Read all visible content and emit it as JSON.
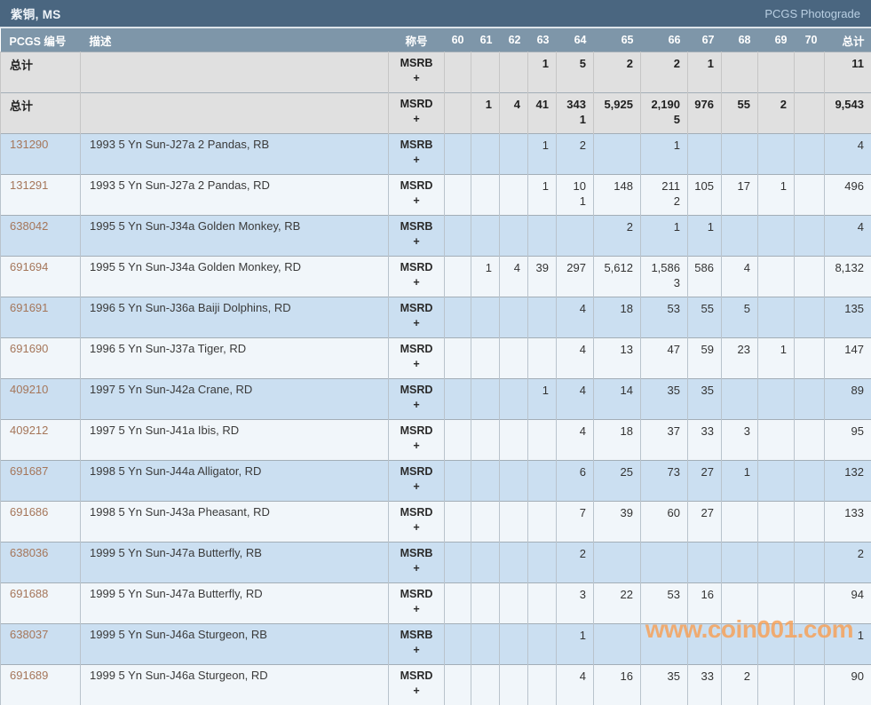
{
  "title_bar": {
    "title": "紫铜, MS",
    "photograde_label": "PCGS Photograde"
  },
  "watermark": {
    "text": "www.coin001.com"
  },
  "colors": {
    "title_bar": "#4a6680",
    "header_bar": "#7e96a9",
    "row_blue": "#cbdff1",
    "row_white": "#f1f6fa",
    "row_summary": "#e0e0e0",
    "link": "#a5765a",
    "watermark": "#f8a055",
    "header_text": "#ffffff",
    "title_text": "#eef3f8",
    "photograde_link": "#b9cfe2",
    "border_h": "#a3aeb7",
    "border_v": "#b9c3cc",
    "text": "#333333"
  },
  "table": {
    "headers": [
      "PCGS 编号",
      "描述",
      "称号",
      "60",
      "61",
      "62",
      "63",
      "64",
      "65",
      "66",
      "67",
      "68",
      "69",
      "70",
      "总计"
    ],
    "grade_keys": [
      "60",
      "61",
      "62",
      "63",
      "64",
      "65",
      "66",
      "67",
      "68",
      "69",
      "70"
    ],
    "rows": [
      {
        "id": "总计",
        "is_link": false,
        "kind": "summary",
        "description": "",
        "designation": [
          "MSRB",
          "+"
        ],
        "grades": {
          "63": [
            "1",
            ""
          ],
          "64": [
            "5",
            ""
          ],
          "65": [
            "2",
            ""
          ],
          "66": [
            "2",
            ""
          ],
          "67": [
            "1",
            ""
          ]
        },
        "total": [
          "11",
          ""
        ]
      },
      {
        "id": "总计",
        "is_link": false,
        "kind": "summary",
        "description": "",
        "designation": [
          "MSRD",
          "+"
        ],
        "grades": {
          "61": [
            "1",
            ""
          ],
          "62": [
            "4",
            ""
          ],
          "63": [
            "41",
            ""
          ],
          "64": [
            "343",
            "1"
          ],
          "65": [
            "5,925",
            ""
          ],
          "66": [
            "2,190",
            "5"
          ],
          "67": [
            "976",
            ""
          ],
          "68": [
            "55",
            ""
          ],
          "69": [
            "2",
            ""
          ]
        },
        "total": [
          "9,543",
          ""
        ]
      },
      {
        "id": "131290",
        "is_link": true,
        "kind": "data",
        "description": "1993 5 Yn Sun-J27a 2 Pandas, RB",
        "designation": [
          "MSRB",
          "+"
        ],
        "grades": {
          "63": [
            "1",
            ""
          ],
          "64": [
            "2",
            ""
          ],
          "66": [
            "1",
            ""
          ]
        },
        "total": [
          "4",
          ""
        ]
      },
      {
        "id": "131291",
        "is_link": true,
        "kind": "data",
        "description": "1993 5 Yn Sun-J27a 2 Pandas, RD",
        "designation": [
          "MSRD",
          "+"
        ],
        "grades": {
          "63": [
            "1",
            ""
          ],
          "64": [
            "10",
            "1"
          ],
          "65": [
            "148",
            ""
          ],
          "66": [
            "211",
            "2"
          ],
          "67": [
            "105",
            ""
          ],
          "68": [
            "17",
            ""
          ],
          "69": [
            "1",
            ""
          ]
        },
        "total": [
          "496",
          ""
        ]
      },
      {
        "id": "638042",
        "is_link": true,
        "kind": "data",
        "description": "1995 5 Yn Sun-J34a Golden Monkey, RB",
        "designation": [
          "MSRB",
          "+"
        ],
        "grades": {
          "65": [
            "2",
            ""
          ],
          "66": [
            "1",
            ""
          ],
          "67": [
            "1",
            ""
          ]
        },
        "total": [
          "4",
          ""
        ]
      },
      {
        "id": "691694",
        "is_link": true,
        "kind": "data",
        "description": "1995 5 Yn Sun-J34a Golden Monkey, RD",
        "designation": [
          "MSRD",
          "+"
        ],
        "grades": {
          "61": [
            "1",
            ""
          ],
          "62": [
            "4",
            ""
          ],
          "63": [
            "39",
            ""
          ],
          "64": [
            "297",
            ""
          ],
          "65": [
            "5,612",
            ""
          ],
          "66": [
            "1,586",
            "3"
          ],
          "67": [
            "586",
            ""
          ],
          "68": [
            "4",
            ""
          ]
        },
        "total": [
          "8,132",
          ""
        ]
      },
      {
        "id": "691691",
        "is_link": true,
        "kind": "data",
        "description": "1996 5 Yn Sun-J36a Baiji Dolphins, RD",
        "designation": [
          "MSRD",
          "+"
        ],
        "grades": {
          "64": [
            "4",
            ""
          ],
          "65": [
            "18",
            ""
          ],
          "66": [
            "53",
            ""
          ],
          "67": [
            "55",
            ""
          ],
          "68": [
            "5",
            ""
          ]
        },
        "total": [
          "135",
          ""
        ]
      },
      {
        "id": "691690",
        "is_link": true,
        "kind": "data",
        "description": "1996 5 Yn Sun-J37a Tiger, RD",
        "designation": [
          "MSRD",
          "+"
        ],
        "grades": {
          "64": [
            "4",
            ""
          ],
          "65": [
            "13",
            ""
          ],
          "66": [
            "47",
            ""
          ],
          "67": [
            "59",
            ""
          ],
          "68": [
            "23",
            ""
          ],
          "69": [
            "1",
            ""
          ]
        },
        "total": [
          "147",
          ""
        ]
      },
      {
        "id": "409210",
        "is_link": true,
        "kind": "data",
        "description": "1997 5 Yn Sun-J42a Crane, RD",
        "designation": [
          "MSRD",
          "+"
        ],
        "grades": {
          "63": [
            "1",
            ""
          ],
          "64": [
            "4",
            ""
          ],
          "65": [
            "14",
            ""
          ],
          "66": [
            "35",
            ""
          ],
          "67": [
            "35",
            ""
          ]
        },
        "total": [
          "89",
          ""
        ]
      },
      {
        "id": "409212",
        "is_link": true,
        "kind": "data",
        "description": "1997 5 Yn Sun-J41a Ibis, RD",
        "designation": [
          "MSRD",
          "+"
        ],
        "grades": {
          "64": [
            "4",
            ""
          ],
          "65": [
            "18",
            ""
          ],
          "66": [
            "37",
            ""
          ],
          "67": [
            "33",
            ""
          ],
          "68": [
            "3",
            ""
          ]
        },
        "total": [
          "95",
          ""
        ]
      },
      {
        "id": "691687",
        "is_link": true,
        "kind": "data",
        "description": "1998 5 Yn Sun-J44a Alligator, RD",
        "designation": [
          "MSRD",
          "+"
        ],
        "grades": {
          "64": [
            "6",
            ""
          ],
          "65": [
            "25",
            ""
          ],
          "66": [
            "73",
            ""
          ],
          "67": [
            "27",
            ""
          ],
          "68": [
            "1",
            ""
          ]
        },
        "total": [
          "132",
          ""
        ]
      },
      {
        "id": "691686",
        "is_link": true,
        "kind": "data",
        "description": "1998 5 Yn Sun-J43a Pheasant, RD",
        "designation": [
          "MSRD",
          "+"
        ],
        "grades": {
          "64": [
            "7",
            ""
          ],
          "65": [
            "39",
            ""
          ],
          "66": [
            "60",
            ""
          ],
          "67": [
            "27",
            ""
          ]
        },
        "total": [
          "133",
          ""
        ]
      },
      {
        "id": "638036",
        "is_link": true,
        "kind": "data",
        "description": "1999 5 Yn Sun-J47a Butterfly, RB",
        "designation": [
          "MSRB",
          "+"
        ],
        "grades": {
          "64": [
            "2",
            ""
          ]
        },
        "total": [
          "2",
          ""
        ]
      },
      {
        "id": "691688",
        "is_link": true,
        "kind": "data",
        "description": "1999 5 Yn Sun-J47a Butterfly, RD",
        "designation": [
          "MSRD",
          "+"
        ],
        "grades": {
          "64": [
            "3",
            ""
          ],
          "65": [
            "22",
            ""
          ],
          "66": [
            "53",
            ""
          ],
          "67": [
            "16",
            ""
          ]
        },
        "total": [
          "94",
          ""
        ]
      },
      {
        "id": "638037",
        "is_link": true,
        "kind": "data",
        "description": "1999 5 Yn Sun-J46a Sturgeon, RB",
        "designation": [
          "MSRB",
          "+"
        ],
        "grades": {
          "64": [
            "1",
            ""
          ]
        },
        "total": [
          "1",
          ""
        ]
      },
      {
        "id": "691689",
        "is_link": true,
        "kind": "data",
        "description": "1999 5 Yn Sun-J46a Sturgeon, RD",
        "designation": [
          "MSRD",
          "+"
        ],
        "grades": {
          "64": [
            "4",
            ""
          ],
          "65": [
            "16",
            ""
          ],
          "66": [
            "35",
            ""
          ],
          "67": [
            "33",
            ""
          ],
          "68": [
            "2",
            ""
          ]
        },
        "total": [
          "90",
          ""
        ]
      }
    ]
  }
}
